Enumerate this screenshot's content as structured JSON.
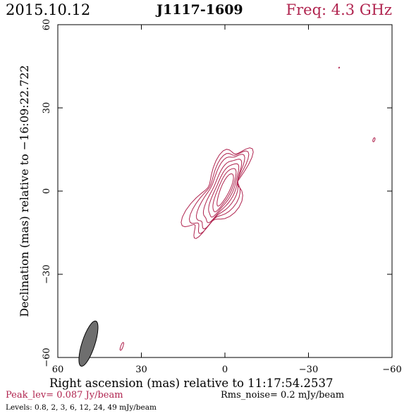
{
  "header": {
    "date": "2015.10.12",
    "source": "J1117-1609",
    "freq": "Freq: 4.3 GHz"
  },
  "colors": {
    "accent": "#b0244f",
    "axes": "#000000",
    "beam_fill": "#6e6e6e"
  },
  "footer": {
    "peak": "Peak_lev=  0.087 Jy/beam",
    "rms": "Rms_noise=  0.2 mJy/beam",
    "levels": "Levels: 0.8,   2,   3,   6,  12,  24,  49 mJy/beam"
  },
  "chart_data": {
    "type": "contour",
    "xlabel": "Right ascension (mas) relative to 11:17:54.2537",
    "ylabel": "Declination (mas) relative to −16:09:22.722",
    "xlim": [
      60,
      -60
    ],
    "ylim": [
      -60,
      60
    ],
    "xticks": [
      60,
      30,
      0,
      -30,
      -60
    ],
    "yticks": [
      60,
      30,
      0,
      -30,
      -60
    ],
    "xtick_labels": [
      "60",
      "30",
      "0",
      "−30",
      "−60"
    ],
    "ytick_labels": [
      "60",
      "30",
      "0",
      "−30",
      "−60"
    ],
    "contour_levels_mJy": [
      0.8,
      2,
      3,
      6,
      12,
      24,
      49
    ],
    "peak_Jy_per_beam": 0.087,
    "rms_noise_mJy_per_beam": 0.2,
    "components": [
      {
        "name": "core",
        "x": 0,
        "y": 0
      },
      {
        "name": "noise-blob-1",
        "x": -41,
        "y": 44.5
      },
      {
        "name": "noise-blob-2",
        "x": -53.5,
        "y": 18.5
      },
      {
        "name": "noise-blob-3",
        "x": 37,
        "y": -56
      }
    ],
    "beam": {
      "x": 49,
      "y": -55,
      "major_mas": 8.5,
      "minor_mas": 2.3,
      "pa_deg": 18
    }
  }
}
